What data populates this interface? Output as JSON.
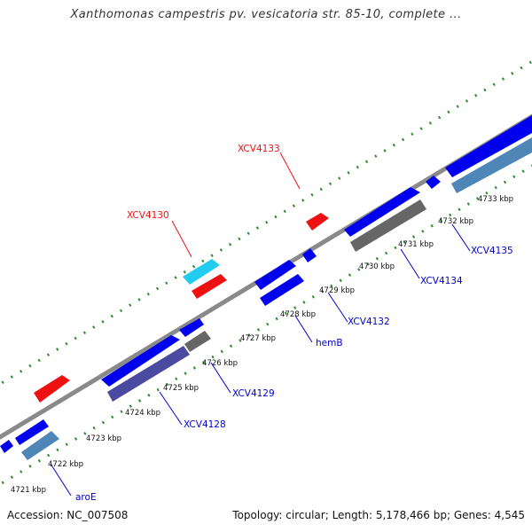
{
  "title": "Xanthomonas campestris pv. vesicatoria str. 85-10, complete ...",
  "footer": {
    "accession_label": "Accession:",
    "accession": "NC_007508",
    "topology_label": "Topology:",
    "topology": "circular;",
    "length_label": "Length:",
    "length": "5,178,466 bp;",
    "genes_label": "Genes:",
    "genes": "4,545"
  },
  "colors": {
    "backbone": "#8a8a8a",
    "tick_dots": "#2e8b2e",
    "gene_blue": "#0000ee",
    "gene_red": "#ee1111",
    "gene_cyan": "#22ccee",
    "gene_gray": "#666666",
    "gene_navy": "#4a4aa0",
    "gene_steel": "#4f86b8",
    "label_blue": "#0000cc",
    "label_red": "#ee1111",
    "kbp_text": "#111111"
  },
  "diagram": {
    "kbp_ticks": [
      {
        "id": "kbp-4721",
        "label": "4721 kbp"
      },
      {
        "id": "kbp-4722",
        "label": "4722 kbp"
      },
      {
        "id": "kbp-4723",
        "label": "4723 kbp"
      },
      {
        "id": "kbp-4724",
        "label": "4724 kbp"
      },
      {
        "id": "kbp-4725",
        "label": "4725 kbp"
      },
      {
        "id": "kbp-4726",
        "label": "4726 kbp"
      },
      {
        "id": "kbp-4727",
        "label": "4727 kbp"
      },
      {
        "id": "kbp-4728",
        "label": "4728 kbp"
      },
      {
        "id": "kbp-4729",
        "label": "4729 kbp"
      },
      {
        "id": "kbp-4730",
        "label": "4730 kbp"
      },
      {
        "id": "kbp-4731",
        "label": "4731 kbp"
      },
      {
        "id": "kbp-4732",
        "label": "4732 kbp"
      },
      {
        "id": "kbp-4733",
        "label": "4733 kbp"
      }
    ],
    "gene_labels": [
      {
        "id": "gene-label-aroE",
        "text": "aroE",
        "color": "label_blue"
      },
      {
        "id": "gene-label-xcv4128",
        "text": "XCV4128",
        "color": "label_blue"
      },
      {
        "id": "gene-label-xcv4129",
        "text": "XCV4129",
        "color": "label_blue"
      },
      {
        "id": "gene-label-hemB",
        "text": "hemB",
        "color": "label_blue"
      },
      {
        "id": "gene-label-xcv4132",
        "text": "XCV4132",
        "color": "label_blue"
      },
      {
        "id": "gene-label-xcv4134",
        "text": "XCV4134",
        "color": "label_blue"
      },
      {
        "id": "gene-label-xcv4135",
        "text": "XCV4135",
        "color": "label_blue"
      },
      {
        "id": "gene-label-xcv4130",
        "text": "XCV4130",
        "color": "label_red"
      },
      {
        "id": "gene-label-xcv4133",
        "text": "XCV4133",
        "color": "label_red"
      }
    ]
  }
}
